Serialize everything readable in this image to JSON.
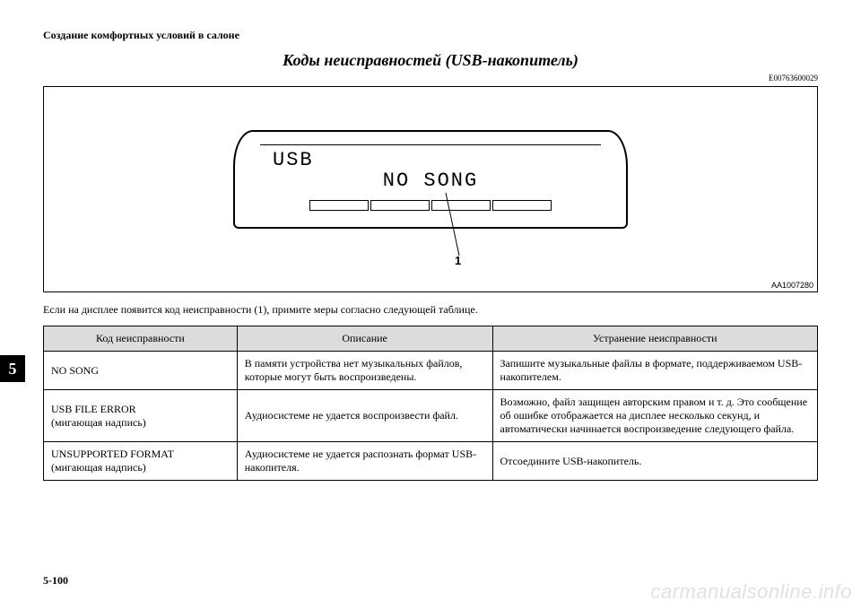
{
  "header": "Создание комфортных условий в салоне",
  "title": "Коды неисправностей (USB-накопитель)",
  "doc_code": "E00763600029",
  "figure": {
    "lcd_line1": "USB",
    "lcd_line2": "NO SONG",
    "callout_label": "1",
    "fig_code": "AA1007280"
  },
  "intro_text": "Если на дисплее появится код неисправности (1), примите меры согласно следующей таблице.",
  "chapter_tab": "5",
  "table": {
    "columns": [
      "Код неисправности",
      "Описание",
      "Устранение неисправности"
    ],
    "col_widths_pct": [
      25,
      33,
      42
    ],
    "header_bg": "#dcdcdc",
    "rows": [
      {
        "code": "NO SONG",
        "desc": "В памяти устройства нет музыкальных файлов, которые могут быть воспроизведены.",
        "fix": "Запишите музыкальные файлы в формате, поддерживаемом USB-накопителем."
      },
      {
        "code": "USB FILE ERROR\n(мигающая надпись)",
        "desc": "Аудиосистеме не удается воспроизвести файл.",
        "fix": "Возможно, файл защищен авторским правом и т. д. Это сообщение об ошибке отображается на дисплее несколько секунд, и автоматически начинается воспроизведение следующего файла."
      },
      {
        "code": "UNSUPPORTED FORMAT\n(мигающая надпись)",
        "desc": "Аудиосистеме не удается распознать формат USB-накопителя.",
        "fix": "Отсоедините USB-накопитель."
      }
    ]
  },
  "page_number": "5-100",
  "watermark": "carmanualsonline.info",
  "colors": {
    "text": "#000000",
    "background": "#ffffff",
    "table_header_bg": "#dcdcdc",
    "watermark": "rgba(0,0,0,0.12)"
  },
  "fonts": {
    "body_family": "Times New Roman, serif",
    "lcd_family": "Courier New, monospace",
    "title_size_pt": 18,
    "body_size_pt": 12,
    "small_size_pt": 9
  }
}
